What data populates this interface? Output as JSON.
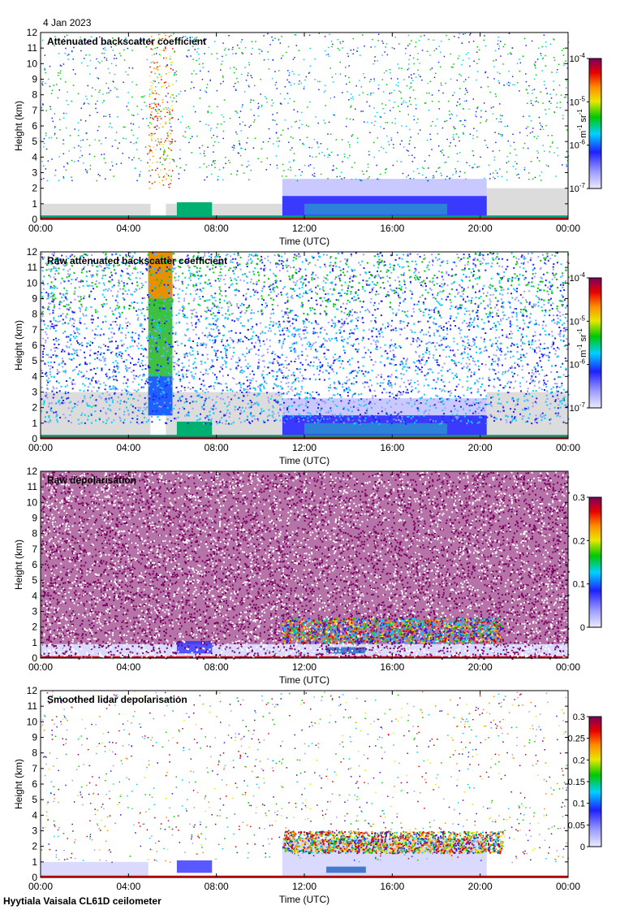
{
  "date": "4 Jan 2023",
  "footer": "Hyytiala Vaisala CL61D ceilometer",
  "colors": {
    "missing": "#dcdcdc",
    "colormap": [
      "#ecebff",
      "#9b9bff",
      "#1f1fff",
      "#00d0ff",
      "#00c800",
      "#e8e800",
      "#ff8c00",
      "#e80000",
      "#7a0060"
    ]
  },
  "chart_data": [
    {
      "type": "heatmap",
      "title": "Attenuated backscatter coefficient",
      "xlabel": "Time (UTC)",
      "ylabel": "Height (km)",
      "xticks": [
        "00:00",
        "04:00",
        "08:00",
        "12:00",
        "16:00",
        "20:00",
        "00:00"
      ],
      "xlim_hours": [
        0,
        24
      ],
      "ylim": [
        0,
        12
      ],
      "yticks": [
        0,
        1,
        2,
        3,
        4,
        5,
        6,
        7,
        8,
        9,
        10,
        11,
        12
      ],
      "colorbar": {
        "scale": "log",
        "range": [
          1e-07,
          0.0001
        ],
        "ticks": [
          {
            "value": 1e-07,
            "label": "10",
            "exp": "-7"
          },
          {
            "value": 1e-06,
            "label": "10",
            "exp": "-6"
          },
          {
            "value": 1e-05,
            "label": "10",
            "exp": "-5"
          },
          {
            "value": 0.0001,
            "label": "10",
            "exp": "-4"
          }
        ],
        "unit": {
          "base1": "m",
          "exp1": "-1",
          "base2": " sr",
          "exp2": "-1"
        }
      }
    },
    {
      "type": "heatmap",
      "title": "Raw attenuated backscatter coefficient",
      "xlabel": "Time (UTC)",
      "ylabel": "Height (km)",
      "xticks": [
        "00:00",
        "04:00",
        "08:00",
        "12:00",
        "16:00",
        "20:00",
        "00:00"
      ],
      "xlim_hours": [
        0,
        24
      ],
      "ylim": [
        0,
        12
      ],
      "yticks": [
        0,
        1,
        2,
        3,
        4,
        5,
        6,
        7,
        8,
        9,
        10,
        11,
        12
      ],
      "colorbar": {
        "scale": "log",
        "range": [
          1e-07,
          0.0001
        ],
        "ticks": [
          {
            "value": 1e-07,
            "label": "10",
            "exp": "-7"
          },
          {
            "value": 1e-06,
            "label": "10",
            "exp": "-6"
          },
          {
            "value": 1e-05,
            "label": "10",
            "exp": "-5"
          },
          {
            "value": 0.0001,
            "label": "10",
            "exp": "-4"
          }
        ],
        "unit": {
          "base1": "m",
          "exp1": "-1",
          "base2": " sr",
          "exp2": "-1"
        }
      }
    },
    {
      "type": "heatmap",
      "title": "Raw depolarisation",
      "xlabel": "Time (UTC)",
      "ylabel": "Height (km)",
      "xticks": [
        "00:00",
        "04:00",
        "08:00",
        "12:00",
        "16:00",
        "20:00",
        "00:00"
      ],
      "xlim_hours": [
        0,
        24
      ],
      "ylim": [
        0,
        12
      ],
      "yticks": [
        0,
        1,
        2,
        3,
        4,
        5,
        6,
        7,
        8,
        9,
        10,
        11,
        12
      ],
      "colorbar": {
        "scale": "linear",
        "range": [
          0,
          0.3
        ],
        "ticks": [
          {
            "value": 0,
            "label": "0"
          },
          {
            "value": 0.1,
            "label": "0.1"
          },
          {
            "value": 0.2,
            "label": "0.2"
          },
          {
            "value": 0.3,
            "label": "0.3"
          }
        ]
      }
    },
    {
      "type": "heatmap",
      "title": "Smoothed lidar depolarisation",
      "xlabel": "Time (UTC)",
      "ylabel": "Height (km)",
      "xticks": [
        "00:00",
        "04:00",
        "08:00",
        "12:00",
        "16:00",
        "20:00",
        "00:00"
      ],
      "xlim_hours": [
        0,
        24
      ],
      "ylim": [
        0,
        12
      ],
      "yticks": [
        0,
        1,
        2,
        3,
        4,
        5,
        6,
        7,
        8,
        9,
        10,
        11,
        12
      ],
      "colorbar": {
        "scale": "linear",
        "range": [
          0,
          0.3
        ],
        "ticks": [
          {
            "value": 0,
            "label": "0"
          },
          {
            "value": 0.05,
            "label": "0.05"
          },
          {
            "value": 0.1,
            "label": "0.1"
          },
          {
            "value": 0.15,
            "label": "0.15"
          },
          {
            "value": 0.2,
            "label": "0.2"
          },
          {
            "value": 0.25,
            "label": "0.25"
          },
          {
            "value": 0.3,
            "label": "0.3"
          }
        ]
      }
    }
  ]
}
